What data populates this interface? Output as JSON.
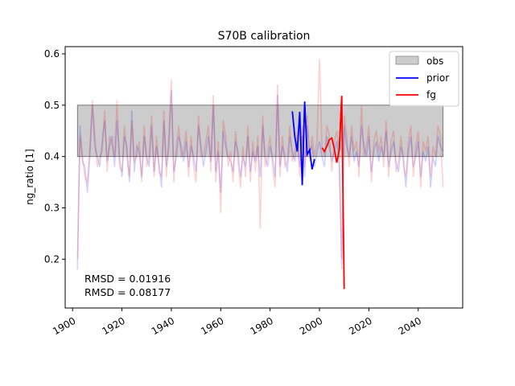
{
  "chart_data": {
    "type": "line",
    "title": "S70B calibration",
    "xlabel": "",
    "ylabel": "ng_ratio [1]",
    "xlim": [
      1897,
      2058
    ],
    "ylim": [
      0.105,
      0.614
    ],
    "x_ticks": [
      1900,
      1920,
      1940,
      1960,
      1980,
      2000,
      2020,
      2040
    ],
    "x_tick_labels": [
      "1900",
      "1920",
      "1940",
      "1960",
      "1980",
      "2000",
      "2020",
      "2040"
    ],
    "y_ticks": [
      0.2,
      0.3,
      0.4,
      0.5,
      0.6
    ],
    "y_tick_labels": [
      "0.2",
      "0.3",
      "0.4",
      "0.5",
      "0.6"
    ],
    "grid": false,
    "legend": {
      "placement": "top-right",
      "entries": [
        "obs",
        "prior",
        "fg"
      ]
    },
    "obs_band": {
      "name": "obs",
      "x_range": [
        1902,
        2050
      ],
      "y_range": [
        0.4,
        0.5
      ],
      "color": "#cccccc"
    },
    "series": [
      {
        "name": "prior",
        "color": "#0000ff",
        "x": [
          1989,
          1990,
          1991,
          1992,
          1993,
          1994,
          1995,
          1996,
          1997,
          1998
        ],
        "values": [
          0.488,
          0.438,
          0.41,
          0.487,
          0.344,
          0.507,
          0.404,
          0.413,
          0.375,
          0.395
        ]
      },
      {
        "name": "fg",
        "color": "#ff0000",
        "x": [
          2001,
          2002,
          2003,
          2004,
          2005,
          2006,
          2007,
          2008,
          2009
        ],
        "values": [
          0.417,
          0.41,
          0.42,
          0.433,
          0.436,
          0.415,
          0.388,
          0.412,
          0.518
        ]
      }
    ],
    "fg_tail": {
      "x": [
        2008,
        2009,
        2010
      ],
      "values": [
        0.412,
        0.518,
        0.142
      ]
    },
    "background_series": [
      {
        "label": "prior (faded)",
        "color": "#0000ff",
        "x": [
          1902,
          1903,
          1904,
          1905,
          1906,
          1907,
          1908,
          1909,
          1910,
          1911,
          1912,
          1913,
          1914,
          1915,
          1916,
          1917,
          1918,
          1919,
          1920,
          1921,
          1922,
          1923,
          1924,
          1925,
          1926,
          1927,
          1928,
          1929,
          1930,
          1931,
          1932,
          1933,
          1934,
          1935,
          1936,
          1937,
          1938,
          1939,
          1940,
          1941,
          1942,
          1943,
          1944,
          1945,
          1946,
          1947,
          1948,
          1949,
          1950,
          1951,
          1952,
          1953,
          1954,
          1955,
          1956,
          1957,
          1958,
          1959,
          1960,
          1961,
          1962,
          1963,
          1964,
          1965,
          1966,
          1967,
          1968,
          1969,
          1970,
          1971,
          1972,
          1973,
          1974,
          1975,
          1976,
          1977,
          1978,
          1979,
          1980,
          1981,
          1982,
          1983,
          1984,
          1985,
          1986,
          1987,
          1988,
          1989,
          1990,
          1991,
          1992,
          1993,
          1994,
          1995,
          1996,
          1997,
          1998,
          1999,
          2000,
          2001,
          2002,
          2003,
          2004,
          2005,
          2006,
          2007,
          2008,
          2009,
          2010,
          2011,
          2012,
          2013,
          2014,
          2015,
          2016,
          2017,
          2018,
          2019,
          2020,
          2021,
          2022,
          2023,
          2024,
          2025,
          2026,
          2027,
          2028,
          2029,
          2030,
          2031,
          2032,
          2033,
          2034,
          2035,
          2036,
          2037,
          2038,
          2039,
          2040,
          2041,
          2042,
          2043,
          2044,
          2045,
          2046,
          2047,
          2048,
          2049,
          2050
        ],
        "values": [
          0.18,
          0.46,
          0.39,
          0.38,
          0.33,
          0.4,
          0.5,
          0.42,
          0.4,
          0.38,
          0.43,
          0.47,
          0.39,
          0.42,
          0.44,
          0.38,
          0.47,
          0.4,
          0.36,
          0.44,
          0.42,
          0.35,
          0.49,
          0.37,
          0.42,
          0.41,
          0.36,
          0.44,
          0.4,
          0.38,
          0.46,
          0.37,
          0.42,
          0.39,
          0.34,
          0.47,
          0.38,
          0.42,
          0.53,
          0.37,
          0.4,
          0.44,
          0.42,
          0.39,
          0.43,
          0.38,
          0.42,
          0.4,
          0.37,
          0.46,
          0.42,
          0.38,
          0.41,
          0.44,
          0.39,
          0.5,
          0.37,
          0.41,
          0.33,
          0.45,
          0.42,
          0.4,
          0.39,
          0.37,
          0.43,
          0.41,
          0.36,
          0.4,
          0.38,
          0.44,
          0.37,
          0.41,
          0.39,
          0.42,
          0.36,
          0.46,
          0.4,
          0.38,
          0.42,
          0.4,
          0.36,
          0.52,
          0.38,
          0.42,
          0.4,
          0.37,
          0.44,
          0.41,
          0.39,
          0.43,
          0.38,
          0.44,
          0.36,
          0.46,
          0.41,
          0.42,
          0.38,
          0.41,
          0.43,
          0.4,
          0.38,
          0.44,
          0.42,
          0.39,
          0.41,
          0.43,
          0.38,
          0.18,
          0.46,
          0.42,
          0.4,
          0.44,
          0.39,
          0.41,
          0.38,
          0.46,
          0.42,
          0.4,
          0.44,
          0.37,
          0.41,
          0.43,
          0.39,
          0.42,
          0.4,
          0.45,
          0.38,
          0.41,
          0.43,
          0.39,
          0.37,
          0.42,
          0.4,
          0.34,
          0.41,
          0.44,
          0.38,
          0.4,
          0.43,
          0.36,
          0.41,
          0.39,
          0.42,
          0.34,
          0.4,
          0.38,
          0.44,
          0.42,
          0.41
        ]
      },
      {
        "label": "fg (faded)",
        "color": "#ff0000",
        "x": [
          1902,
          1903,
          1904,
          1905,
          1906,
          1907,
          1908,
          1909,
          1910,
          1911,
          1912,
          1913,
          1914,
          1915,
          1916,
          1917,
          1918,
          1919,
          1920,
          1921,
          1922,
          1923,
          1924,
          1925,
          1926,
          1927,
          1928,
          1929,
          1930,
          1931,
          1932,
          1933,
          1934,
          1935,
          1936,
          1937,
          1938,
          1939,
          1940,
          1941,
          1942,
          1943,
          1944,
          1945,
          1946,
          1947,
          1948,
          1949,
          1950,
          1951,
          1952,
          1953,
          1954,
          1955,
          1956,
          1957,
          1958,
          1959,
          1960,
          1961,
          1962,
          1963,
          1964,
          1965,
          1966,
          1967,
          1968,
          1969,
          1970,
          1971,
          1972,
          1973,
          1974,
          1975,
          1976,
          1977,
          1978,
          1979,
          1980,
          1981,
          1982,
          1983,
          1984,
          1985,
          1986,
          1987,
          1988,
          1989,
          1990,
          1991,
          1992,
          1993,
          1994,
          1995,
          1996,
          1997,
          1998,
          1999,
          2000,
          2001,
          2002,
          2003,
          2004,
          2005,
          2006,
          2007,
          2008,
          2009,
          2010,
          2011,
          2012,
          2013,
          2014,
          2015,
          2016,
          2017,
          2018,
          2019,
          2020,
          2021,
          2022,
          2023,
          2024,
          2025,
          2026,
          2027,
          2028,
          2029,
          2030,
          2031,
          2032,
          2033,
          2034,
          2035,
          2036,
          2037,
          2038,
          2039,
          2040,
          2041,
          2042,
          2043,
          2044,
          2045,
          2046,
          2047,
          2048,
          2049,
          2050
        ],
        "values": [
          0.2,
          0.44,
          0.4,
          0.36,
          0.35,
          0.42,
          0.51,
          0.44,
          0.38,
          0.4,
          0.41,
          0.49,
          0.37,
          0.44,
          0.42,
          0.4,
          0.51,
          0.38,
          0.37,
          0.46,
          0.4,
          0.36,
          0.47,
          0.39,
          0.4,
          0.43,
          0.35,
          0.46,
          0.38,
          0.4,
          0.48,
          0.36,
          0.44,
          0.37,
          0.36,
          0.49,
          0.36,
          0.44,
          0.55,
          0.35,
          0.42,
          0.46,
          0.4,
          0.41,
          0.45,
          0.36,
          0.44,
          0.38,
          0.35,
          0.48,
          0.4,
          0.4,
          0.43,
          0.46,
          0.37,
          0.52,
          0.35,
          0.43,
          0.29,
          0.47,
          0.44,
          0.38,
          0.41,
          0.35,
          0.45,
          0.39,
          0.34,
          0.42,
          0.36,
          0.46,
          0.35,
          0.43,
          0.37,
          0.44,
          0.26,
          0.48,
          0.38,
          0.4,
          0.44,
          0.38,
          0.34,
          0.54,
          0.36,
          0.44,
          0.38,
          0.39,
          0.46,
          0.39,
          0.41,
          0.45,
          0.36,
          0.46,
          0.38,
          0.48,
          0.39,
          0.44,
          0.4,
          0.43,
          0.59,
          0.42,
          0.4,
          0.46,
          0.44,
          0.37,
          0.43,
          0.45,
          0.4,
          0.2,
          0.48,
          0.44,
          0.38,
          0.46,
          0.41,
          0.43,
          0.36,
          0.5,
          0.4,
          0.42,
          0.46,
          0.35,
          0.43,
          0.45,
          0.41,
          0.44,
          0.38,
          0.47,
          0.36,
          0.43,
          0.45,
          0.37,
          0.39,
          0.44,
          0.38,
          0.36,
          0.43,
          0.46,
          0.36,
          0.42,
          0.45,
          0.34,
          0.43,
          0.41,
          0.44,
          0.36,
          0.42,
          0.4,
          0.46,
          0.44,
          0.34
        ]
      }
    ],
    "annotations": [
      {
        "text": "RMSD = 0.01916",
        "color": "#0000ff"
      },
      {
        "text": "RMSD = 0.08177",
        "color": "#ff0000"
      }
    ]
  }
}
